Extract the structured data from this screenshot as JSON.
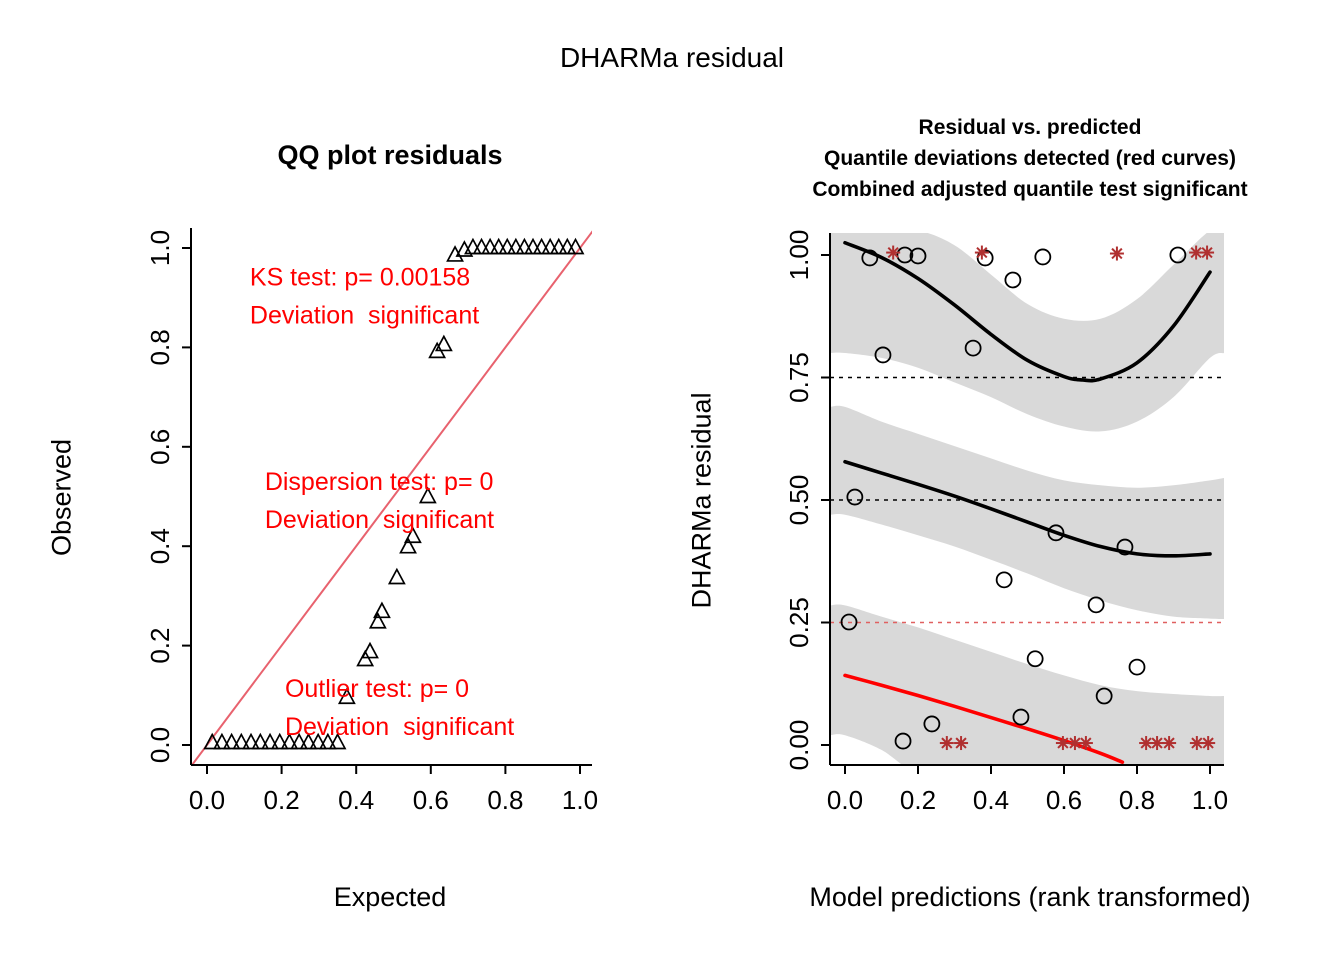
{
  "page_title": "DHARMa residual",
  "colors": {
    "annotation_red": "#ff0000",
    "qq_line": "#e8626e",
    "band_gray": "#d9d9d9",
    "outlier_red": "#b03030",
    "quantile_red": "#ff0000",
    "black": "#000000"
  },
  "chart_data": [
    {
      "type": "scatter",
      "panel": "qq",
      "title": "QQ plot residuals",
      "xlabel": "Expected",
      "ylabel": "Observed",
      "xlim": [
        0,
        1
      ],
      "ylim": [
        0,
        1
      ],
      "xtick_values": [
        0.0,
        0.2,
        0.4,
        0.6,
        0.8,
        1.0
      ],
      "xticks": [
        "0.0",
        "0.2",
        "0.4",
        "0.6",
        "0.8",
        "1.0"
      ],
      "ytick_values": [
        0.0,
        0.2,
        0.4,
        0.6,
        0.8,
        1.0
      ],
      "yticks": [
        "0.0",
        "0.2",
        "0.4",
        "0.6",
        "0.8",
        "1.0"
      ],
      "marker": "open-triangle",
      "reference_line": {
        "from": [
          0,
          0
        ],
        "to": [
          1,
          1
        ],
        "color": "#e8626e"
      },
      "points": [
        [
          0.014,
          0.004
        ],
        [
          0.04,
          0.004
        ],
        [
          0.066,
          0.004
        ],
        [
          0.092,
          0.004
        ],
        [
          0.118,
          0.004
        ],
        [
          0.143,
          0.004
        ],
        [
          0.169,
          0.004
        ],
        [
          0.195,
          0.004
        ],
        [
          0.221,
          0.004
        ],
        [
          0.247,
          0.004
        ],
        [
          0.272,
          0.004
        ],
        [
          0.298,
          0.004
        ],
        [
          0.324,
          0.004
        ],
        [
          0.35,
          0.004
        ],
        [
          0.375,
          0.095
        ],
        [
          0.424,
          0.171
        ],
        [
          0.437,
          0.187
        ],
        [
          0.458,
          0.247
        ],
        [
          0.469,
          0.268
        ],
        [
          0.509,
          0.336
        ],
        [
          0.539,
          0.398
        ],
        [
          0.552,
          0.419
        ],
        [
          0.592,
          0.499
        ],
        [
          0.617,
          0.791
        ],
        [
          0.635,
          0.805
        ],
        [
          0.665,
          0.985
        ],
        [
          0.69,
          0.995
        ],
        [
          0.713,
          1.0
        ],
        [
          0.736,
          1.0
        ],
        [
          0.759,
          1.0
        ],
        [
          0.782,
          1.0
        ],
        [
          0.805,
          1.0
        ],
        [
          0.828,
          1.0
        ],
        [
          0.851,
          1.0
        ],
        [
          0.874,
          1.0
        ],
        [
          0.897,
          1.0
        ],
        [
          0.92,
          1.0
        ],
        [
          0.943,
          1.0
        ],
        [
          0.966,
          1.0
        ],
        [
          0.988,
          1.0
        ]
      ],
      "annotations": [
        {
          "x": 0.115,
          "y": 0.925,
          "color": "#ff0000",
          "lines": [
            "KS test: p= 0.00158",
            "Deviation  significant"
          ]
        },
        {
          "x": 0.155,
          "y": 0.513,
          "color": "#ff0000",
          "lines": [
            "Dispersion test: p= 0",
            "Deviation  significant"
          ]
        },
        {
          "x": 0.209,
          "y": 0.097,
          "color": "#ff0000",
          "lines": [
            "Outlier test: p= 0",
            "Deviation  significant"
          ]
        }
      ]
    },
    {
      "type": "line",
      "panel": "residual-vs-predicted",
      "title_lines": [
        "Residual vs. predicted",
        "Quantile deviations detected (red curves)",
        "Combined adjusted quantile test significant"
      ],
      "title_color": "#ff0000",
      "xlabel": "Model predictions (rank transformed)",
      "ylabel": "DHARMa residual",
      "xlim": [
        0,
        1
      ],
      "ylim": [
        0,
        1
      ],
      "xtick_values": [
        0.0,
        0.2,
        0.4,
        0.6,
        0.8,
        1.0
      ],
      "xticks": [
        "0.0",
        "0.2",
        "0.4",
        "0.6",
        "0.8",
        "1.0"
      ],
      "ytick_values": [
        0.0,
        0.25,
        0.5,
        0.75,
        1.0
      ],
      "yticks": [
        "0.00",
        "0.25",
        "0.50",
        "0.75",
        "1.00"
      ],
      "band_color": "#d9d9d9",
      "dashed_lines": [
        {
          "y": 0.75,
          "color": "#000000"
        },
        {
          "y": 0.5,
          "color": "#000000"
        },
        {
          "y": 0.25,
          "color": "#e06060"
        }
      ],
      "quantile_curves": [
        {
          "name": "quantile-0.75",
          "color": "#000000",
          "significant": false,
          "points": [
            [
              0,
              1.025
            ],
            [
              0.1,
              0.995
            ],
            [
              0.2,
              0.952
            ],
            [
              0.3,
              0.898
            ],
            [
              0.4,
              0.838
            ],
            [
              0.5,
              0.785
            ],
            [
              0.6,
              0.752
            ],
            [
              0.65,
              0.745
            ],
            [
              0.7,
              0.747
            ],
            [
              0.8,
              0.78
            ],
            [
              0.9,
              0.855
            ],
            [
              1,
              0.965
            ]
          ],
          "band": {
            "x": [
              -0.04,
              0,
              0.1,
              0.2,
              0.3,
              0.4,
              0.5,
              0.6,
              0.7,
              0.8,
              0.9,
              1,
              1.04
            ],
            "upper": [
              1.05,
              1.05,
              1.05,
              1.05,
              1.02,
              0.96,
              0.9,
              0.87,
              0.87,
              0.91,
              0.98,
              1.05,
              1.05
            ],
            "lower": [
              0.8,
              0.8,
              0.79,
              0.77,
              0.74,
              0.71,
              0.675,
              0.65,
              0.64,
              0.66,
              0.71,
              0.79,
              0.8
            ]
          }
        },
        {
          "name": "quantile-0.50",
          "color": "#000000",
          "significant": false,
          "points": [
            [
              0,
              0.578
            ],
            [
              0.1,
              0.555
            ],
            [
              0.2,
              0.532
            ],
            [
              0.3,
              0.508
            ],
            [
              0.4,
              0.482
            ],
            [
              0.5,
              0.455
            ],
            [
              0.6,
              0.428
            ],
            [
              0.7,
              0.405
            ],
            [
              0.8,
              0.39
            ],
            [
              0.9,
              0.386
            ],
            [
              1,
              0.39
            ]
          ],
          "band": {
            "x": [
              -0.04,
              0,
              0.1,
              0.2,
              0.3,
              0.4,
              0.5,
              0.6,
              0.7,
              0.8,
              0.9,
              1,
              1.04
            ],
            "upper": [
              0.69,
              0.69,
              0.66,
              0.635,
              0.61,
              0.585,
              0.56,
              0.54,
              0.53,
              0.525,
              0.53,
              0.54,
              0.545
            ],
            "lower": [
              0.47,
              0.47,
              0.45,
              0.428,
              0.405,
              0.378,
              0.35,
              0.32,
              0.295,
              0.275,
              0.262,
              0.258,
              0.257
            ]
          }
        },
        {
          "name": "quantile-0.25",
          "color": "#ff0000",
          "significant": true,
          "points": [
            [
              0,
              0.142
            ],
            [
              0.1,
              0.122
            ],
            [
              0.2,
              0.101
            ],
            [
              0.3,
              0.079
            ],
            [
              0.4,
              0.056
            ],
            [
              0.5,
              0.033
            ],
            [
              0.6,
              0.009
            ],
            [
              0.7,
              -0.017
            ],
            [
              0.76,
              -0.035
            ]
          ],
          "band": {
            "x": [
              -0.04,
              0,
              0.1,
              0.2,
              0.3,
              0.4,
              0.5,
              0.6,
              0.7,
              0.8,
              0.9,
              1,
              1.04
            ],
            "upper": [
              0.285,
              0.285,
              0.262,
              0.24,
              0.215,
              0.19,
              0.165,
              0.142,
              0.122,
              0.11,
              0.104,
              0.1,
              0.1
            ],
            "lower": [
              0.02,
              0.02,
              -0.01,
              -0.06,
              -0.06,
              -0.06,
              -0.06,
              -0.06,
              -0.06,
              -0.06,
              -0.06,
              -0.06,
              -0.06
            ]
          }
        }
      ],
      "points": [
        [
          0.068,
          0.994
        ],
        [
          0.164,
          1.0
        ],
        [
          0.2,
          0.998
        ],
        [
          0.384,
          0.994
        ],
        [
          0.46,
          0.949
        ],
        [
          0.542,
          0.996
        ],
        [
          0.912,
          1.0
        ],
        [
          0.104,
          0.796
        ],
        [
          0.351,
          0.81
        ],
        [
          0.027,
          0.506
        ],
        [
          0.578,
          0.433
        ],
        [
          0.767,
          0.404
        ],
        [
          0.436,
          0.337
        ],
        [
          0.688,
          0.286
        ],
        [
          0.011,
          0.251
        ],
        [
          0.521,
          0.176
        ],
        [
          0.8,
          0.159
        ],
        [
          0.71,
          0.1
        ],
        [
          0.482,
          0.057
        ],
        [
          0.238,
          0.043
        ],
        [
          0.159,
          0.008
        ]
      ],
      "outliers": {
        "marker": "asterisk",
        "color": "#b03030",
        "points": [
          [
            0.132,
            1.005
          ],
          [
            0.375,
            1.005
          ],
          [
            0.745,
            1.003
          ],
          [
            0.962,
            1.005
          ],
          [
            0.992,
            1.005
          ],
          [
            0.279,
            0.004
          ],
          [
            0.318,
            0.004
          ],
          [
            0.597,
            0.004
          ],
          [
            0.63,
            0.004
          ],
          [
            0.66,
            0.004
          ],
          [
            0.825,
            0.004
          ],
          [
            0.855,
            0.004
          ],
          [
            0.888,
            0.004
          ],
          [
            0.964,
            0.004
          ],
          [
            0.995,
            0.004
          ]
        ]
      }
    }
  ]
}
